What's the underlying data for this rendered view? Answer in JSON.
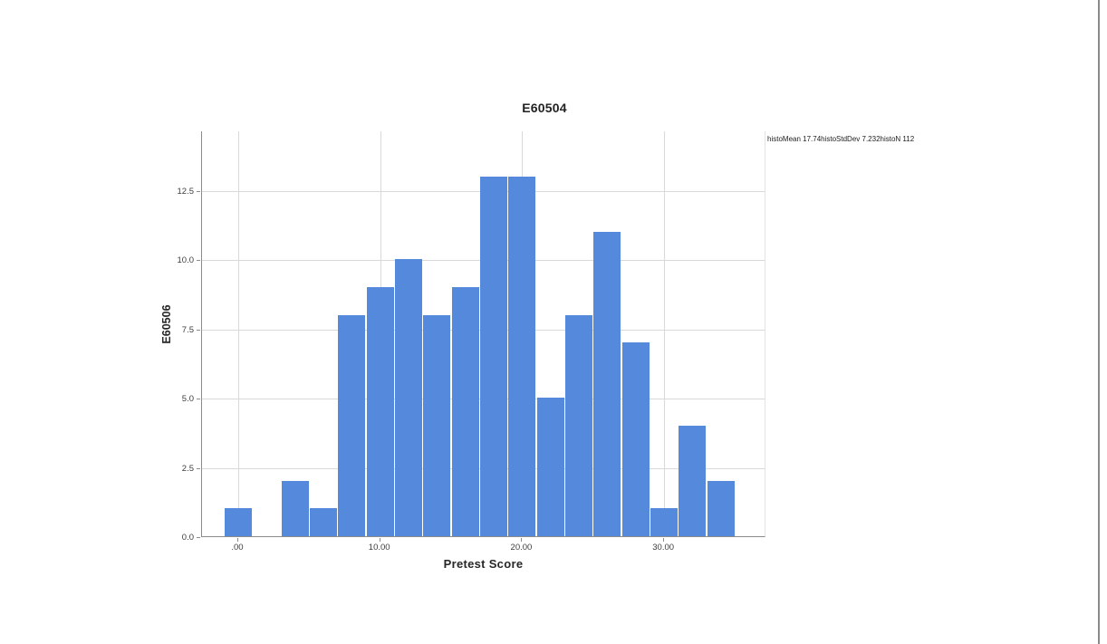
{
  "window": {
    "background": "#ffffff",
    "right_border_color": "#8a8a8a"
  },
  "chart_data": {
    "type": "bar",
    "subtype": "histogram",
    "title": "E60504",
    "xlabel": "Pretest Score",
    "ylabel": "E60506",
    "annotation": "histoMean 17.74histoStdDev 7.232histoN 112",
    "stats": {
      "mean": 17.74,
      "std_dev": 7.232,
      "n": 112
    },
    "bin_width": 2,
    "bin_centers": [
      0,
      2,
      4,
      6,
      8,
      10,
      12,
      14,
      16,
      18,
      20,
      22,
      24,
      26,
      28,
      30,
      32,
      34
    ],
    "frequencies": [
      1,
      0,
      2,
      1,
      8,
      9,
      10,
      8,
      9,
      13,
      13,
      5,
      8,
      11,
      7,
      1,
      4,
      2
    ],
    "x_ticks": [
      {
        "value": 0,
        "label": ".00"
      },
      {
        "value": 10,
        "label": "10.00"
      },
      {
        "value": 20,
        "label": "20.00"
      },
      {
        "value": 30,
        "label": "30.00"
      }
    ],
    "y_ticks": [
      {
        "value": 0,
        "label": "0.0"
      },
      {
        "value": 2.5,
        "label": "2.5"
      },
      {
        "value": 5,
        "label": "5.0"
      },
      {
        "value": 7.5,
        "label": "7.5"
      },
      {
        "value": 10,
        "label": "10.0"
      },
      {
        "value": 12.5,
        "label": "12.5"
      }
    ],
    "xlim": [
      -2.55,
      37.2
    ],
    "ylim": [
      0,
      14.66
    ],
    "grid": true,
    "legend": "none",
    "colors": {
      "bar": "#5589db",
      "bar_gap": "#ffffff",
      "grid": "#d9d9d9",
      "axis": "#8c8c8c",
      "tick_text": "#3d3d3d",
      "label_text": "#262626"
    }
  }
}
